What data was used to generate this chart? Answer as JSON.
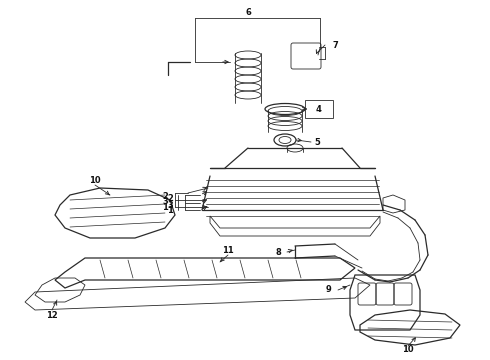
{
  "background_color": "#ffffff",
  "line_color": "#2a2a2a",
  "label_color": "#111111",
  "fig_width": 4.9,
  "fig_height": 3.6,
  "dpi": 100
}
